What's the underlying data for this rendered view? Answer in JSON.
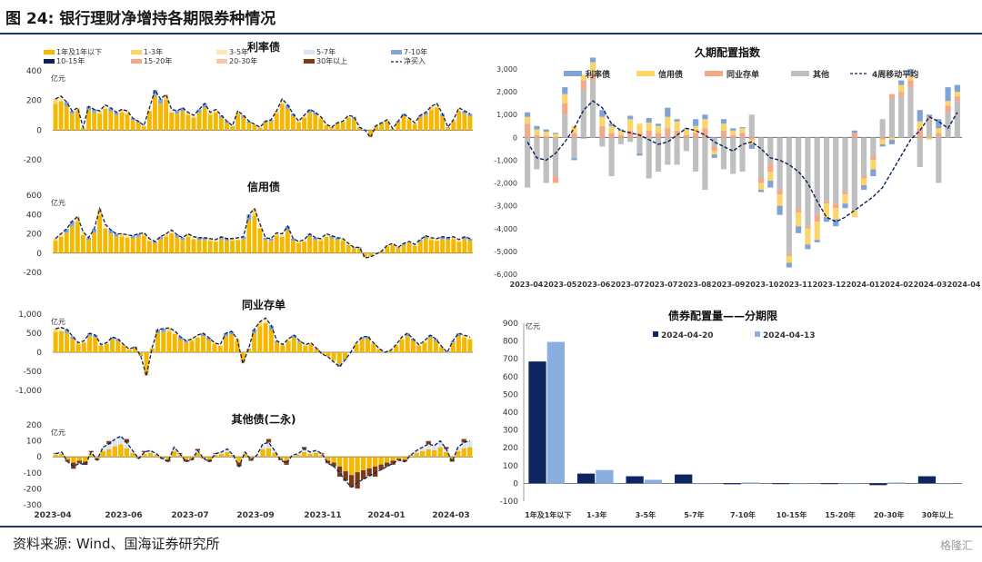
{
  "page": {
    "figure_title": "图 24:  银行理财净增持各期限券种情况",
    "source": "资料来源:  Wind、国海证券研究所",
    "watermark": "格隆汇"
  },
  "colors": {
    "y1": "#f5b800",
    "y2": "#fcd56a",
    "y3": "#fde9b0",
    "y4": "#dbe4f0",
    "y5": "#7fa3d6",
    "y6": "#0d1f5c",
    "y7": "#f2a98a",
    "y8": "#f7c9a8",
    "y9": "#7a3a17",
    "net": "#0d1f5c",
    "other": "#bfbfbf",
    "bar_a": "#0d2561",
    "bar_b": "#8aaee0"
  },
  "chart_data": [
    {
      "id": "rate-bonds",
      "type": "bar",
      "title": "利率债",
      "unit": "亿元",
      "ylim": [
        -200,
        400
      ],
      "yticks": [
        -200,
        0,
        200,
        400
      ],
      "x_ticks": [
        "2023-04",
        "2023-06",
        "2023-07",
        "2023-09",
        "2023-11",
        "2024-01",
        "2024-03"
      ],
      "legend": [
        "1年及1年以下",
        "1-3年",
        "3-5年",
        "5-7年",
        "7-10年",
        "10-15年",
        "15-20年",
        "20-30年",
        "30年以上",
        "净买入"
      ],
      "series_net": [
        210,
        230,
        190,
        130,
        150,
        20,
        160,
        140,
        130,
        170,
        150,
        120,
        140,
        130,
        80,
        60,
        30,
        150,
        270,
        210,
        240,
        140,
        130,
        150,
        120,
        100,
        140,
        180,
        120,
        140,
        100,
        60,
        30,
        130,
        100,
        60,
        40,
        20,
        60,
        70,
        130,
        210,
        170,
        110,
        60,
        100,
        140,
        120,
        90,
        40,
        20,
        50,
        60,
        100,
        90,
        20,
        0,
        -50,
        30,
        50,
        70,
        10,
        60,
        110,
        80,
        50,
        100,
        120,
        160,
        180,
        110,
        20,
        70,
        150,
        130,
        110
      ]
    },
    {
      "id": "credit-bonds",
      "type": "bar",
      "title": "信用债",
      "unit": "亿元",
      "ylim": [
        -200,
        600
      ],
      "yticks": [
        -200,
        0,
        200,
        400,
        600
      ],
      "x_ticks": [
        "2023-04",
        "2023-06",
        "2023-07",
        "2023-09",
        "2023-11",
        "2024-01",
        "2024-03"
      ],
      "series_net": [
        150,
        200,
        250,
        330,
        380,
        220,
        160,
        250,
        460,
        300,
        240,
        200,
        200,
        190,
        180,
        200,
        210,
        150,
        120,
        170,
        200,
        240,
        190,
        160,
        200,
        170,
        160,
        160,
        150,
        140,
        170,
        150,
        150,
        160,
        170,
        400,
        460,
        300,
        160,
        150,
        210,
        200,
        280,
        150,
        120,
        140,
        200,
        160,
        150,
        200,
        180,
        160,
        150,
        100,
        60,
        60,
        -50,
        -40,
        -10,
        20,
        80,
        100,
        60,
        100,
        120,
        90,
        140,
        180,
        160,
        150,
        170,
        160,
        170,
        140,
        170,
        150
      ]
    },
    {
      "id": "ncd",
      "type": "bar",
      "title": "同业存单",
      "unit": "亿元",
      "ylim": [
        -1000,
        1000
      ],
      "yticks": [
        -1000,
        -500,
        0,
        500,
        1000
      ],
      "x_ticks": [
        "2023-04",
        "2023-06",
        "2023-07",
        "2023-09",
        "2023-11",
        "2024-01",
        "2024-03"
      ],
      "series_net": [
        620,
        650,
        600,
        420,
        250,
        300,
        500,
        450,
        200,
        250,
        400,
        350,
        200,
        80,
        150,
        -100,
        -620,
        120,
        600,
        620,
        640,
        560,
        400,
        300,
        350,
        450,
        500,
        380,
        250,
        200,
        500,
        550,
        350,
        -300,
        100,
        600,
        800,
        900,
        700,
        300,
        200,
        350,
        450,
        300,
        200,
        250,
        100,
        -50,
        -120,
        -250,
        -380,
        -200,
        0,
        250,
        400,
        420,
        250,
        100,
        0,
        50,
        200,
        400,
        500,
        350,
        200,
        300,
        450,
        350,
        150,
        0,
        300,
        500,
        450,
        400
      ]
    },
    {
      "id": "other-bonds",
      "type": "bar",
      "title": "其他债(二永)",
      "unit": "亿元",
      "ylim": [
        -300,
        200
      ],
      "yticks": [
        -300,
        -200,
        -100,
        0,
        100,
        200
      ],
      "x_ticks": [
        "2023-04",
        "2023-06",
        "2023-07",
        "2023-09",
        "2023-11",
        "2024-01",
        "2024-03"
      ],
      "series_net": [
        20,
        30,
        -30,
        -60,
        -40,
        -50,
        30,
        -20,
        60,
        80,
        110,
        130,
        90,
        40,
        -10,
        30,
        40,
        20,
        -10,
        -30,
        60,
        20,
        -30,
        -20,
        40,
        -10,
        -30,
        20,
        30,
        50,
        10,
        -60,
        30,
        -20,
        10,
        80,
        90,
        40,
        -20,
        -40,
        10,
        20,
        50,
        30,
        40,
        20,
        -40,
        -60,
        -100,
        -150,
        -190,
        -160,
        -140,
        -120,
        -100,
        -80,
        -60,
        -40,
        -20,
        -30,
        10,
        40,
        60,
        80,
        70,
        100,
        50,
        -30,
        60,
        90,
        100
      ]
    },
    {
      "id": "duration-index",
      "type": "bar",
      "title": "久期配置指数",
      "ylim": [
        -6000,
        3000
      ],
      "yticks": [
        -6000,
        -5000,
        -4000,
        -3000,
        -2000,
        -1000,
        0,
        1000,
        2000,
        3000
      ],
      "x_ticks": [
        "2023-04",
        "2023-05",
        "2023-06",
        "2023-07",
        "2023-07",
        "2023-08",
        "2023-09",
        "2023-10",
        "2023-11",
        "2023-12",
        "2024-01",
        "2024-02",
        "2024-03",
        "2024-04"
      ],
      "legend": [
        "利率债",
        "信用债",
        "同业存单",
        "其他",
        "4周移动平均"
      ],
      "stack_rate": [
        200,
        150,
        100,
        50,
        300,
        -100,
        -50,
        200,
        300,
        100,
        50,
        150,
        -100,
        200,
        100,
        400,
        100,
        50,
        300,
        200,
        -150,
        200,
        100,
        50,
        -200,
        -100,
        -300,
        -400,
        -200,
        -300,
        -200,
        -100,
        -200,
        -300,
        -200,
        100,
        -200,
        -300,
        -100,
        -200,
        200,
        300,
        500,
        100,
        400,
        600,
        300
      ],
      "stack_credit": [
        300,
        250,
        200,
        150,
        400,
        300,
        250,
        500,
        400,
        300,
        200,
        500,
        400,
        350,
        300,
        500,
        400,
        250,
        300,
        400,
        -150,
        300,
        200,
        200,
        -200,
        -300,
        -400,
        -500,
        -300,
        -600,
        -700,
        -800,
        -600,
        -500,
        -400,
        -300,
        -300,
        -400,
        -200,
        -100,
        300,
        200,
        300,
        -100,
        200,
        200,
        200
      ],
      "stack_ncd": [
        600,
        100,
        50,
        -300,
        500,
        200,
        400,
        300,
        500,
        200,
        100,
        300,
        200,
        300,
        200,
        400,
        300,
        100,
        200,
        400,
        -200,
        300,
        100,
        200,
        -100,
        -200,
        -300,
        -200,
        -100,
        -200,
        -100,
        -300,
        -100,
        -200,
        -100,
        200,
        -100,
        -200,
        -100,
        200,
        200,
        300,
        400,
        100,
        200,
        300,
        200
      ],
      "stack_other": [
        -2200,
        -1400,
        -2000,
        -1700,
        1000,
        -900,
        2100,
        2500,
        -400,
        -1700,
        -300,
        -200,
        -700,
        -1800,
        -1500,
        -1200,
        -1200,
        -600,
        -1500,
        -2300,
        -400,
        -1400,
        -1600,
        -1500,
        1000,
        -1800,
        -1200,
        -2300,
        -5100,
        -3100,
        -3900,
        -3400,
        -2800,
        -2900,
        -2400,
        -3200,
        -1700,
        -800,
        800,
        1700,
        1800,
        2200,
        -1300,
        800,
        -2000,
        1100,
        1600
      ],
      "ma4": [
        -200,
        -900,
        -1000,
        -700,
        -200,
        400,
        1200,
        1600,
        1300,
        600,
        300,
        200,
        100,
        -100,
        -300,
        -200,
        100,
        400,
        300,
        100,
        -200,
        -400,
        -600,
        -300,
        -200,
        -500,
        -900,
        -1000,
        -1200,
        -1500,
        -2000,
        -2800,
        -3500,
        -3700,
        -3500,
        -3200,
        -2900,
        -2600,
        -2200,
        -1500,
        -800,
        -100,
        300,
        900,
        700,
        400,
        1100
      ]
    },
    {
      "id": "allocation-by-tenor",
      "type": "bar",
      "title": "债券配置量——分期限",
      "unit": "亿元",
      "ylim": [
        -100,
        900
      ],
      "yticks": [
        -100,
        0,
        100,
        200,
        300,
        400,
        500,
        600,
        700,
        800,
        900
      ],
      "categories": [
        "1年及1年以下",
        "1-3年",
        "3-5年",
        "5-7年",
        "7-10年",
        "10-15年",
        "15-20年",
        "20-30年",
        "30年以上"
      ],
      "series": [
        {
          "name": "2024-04-20",
          "values": [
            685,
            55,
            40,
            50,
            -5,
            0,
            0,
            -10,
            40
          ]
        },
        {
          "name": "2024-04-13",
          "values": [
            795,
            75,
            20,
            0,
            5,
            0,
            0,
            5,
            0
          ]
        }
      ]
    }
  ]
}
